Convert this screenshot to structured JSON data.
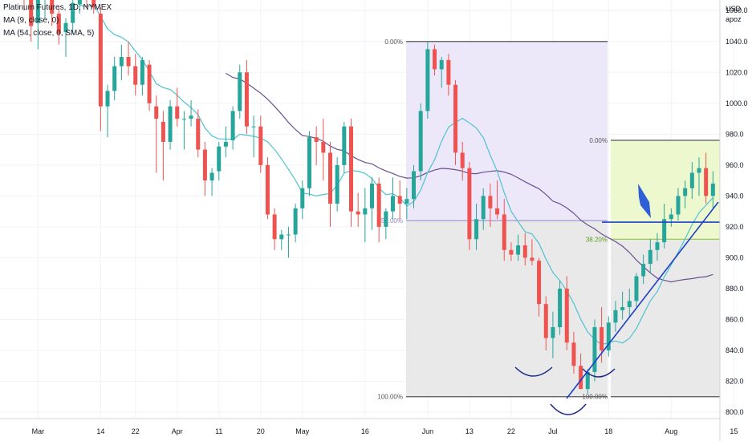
{
  "legend": {
    "line1": "Platinum Futures, 1D, NYMEX",
    "line2": "MA (9, close, 0)",
    "line3": "MA (54, close, 0, SMA, 5)"
  },
  "price_axis": {
    "currency": "USD",
    "sub": "apoz"
  },
  "colors": {
    "up": "#26a69a",
    "down": "#ef5350",
    "ma_fast": "#4fc3d0",
    "ma_slow": "#6b4f8f",
    "fib1_bg_top": "#ece8fa",
    "fib1_bg_bottom": "#e9e9e9",
    "fib2_bg": "#eef8cf",
    "trend": "#1e3fc8",
    "fib_level_line": "#5c5c8c"
  },
  "chart_data": {
    "type": "candlestick",
    "title": "Platinum Futures, 1D, NYMEX",
    "xlabel": "",
    "ylabel": "USD",
    "ylim": [
      795,
      1070
    ],
    "y_ticks": [
      800,
      820,
      840,
      860,
      880,
      900,
      920,
      940,
      960,
      980,
      1000,
      1020,
      1040,
      1060
    ],
    "x_ticks": [
      {
        "label": "Mar",
        "index": 2
      },
      {
        "label": "14",
        "index": 11
      },
      {
        "label": "22",
        "index": 16
      },
      {
        "label": "Apr",
        "index": 22
      },
      {
        "label": "11",
        "index": 28
      },
      {
        "label": "20",
        "index": 34
      },
      {
        "label": "May",
        "index": 40
      },
      {
        "label": "16",
        "index": 49
      },
      {
        "label": "Jun",
        "index": 58
      },
      {
        "label": "13",
        "index": 64
      },
      {
        "label": "22",
        "index": 70
      },
      {
        "label": "Jul",
        "index": 76
      },
      {
        "label": "18",
        "index": 84
      },
      {
        "label": "Aug",
        "index": 93
      },
      {
        "label": "15",
        "index": 102
      }
    ],
    "candles": [
      [
        1082,
        1090,
        1060,
        1075
      ],
      [
        1075,
        1085,
        1040,
        1050
      ],
      [
        1052,
        1075,
        1035,
        1068
      ],
      [
        1068,
        1085,
        1055,
        1080
      ],
      [
        1080,
        1088,
        1050,
        1058
      ],
      [
        1058,
        1062,
        1038,
        1045
      ],
      [
        1046,
        1055,
        1030,
        1052
      ],
      [
        1052,
        1072,
        1045,
        1065
      ],
      [
        1064,
        1082,
        1058,
        1078
      ],
      [
        1076,
        1090,
        1062,
        1068
      ],
      [
        1070,
        1080,
        1058,
        1062
      ],
      [
        1058,
        1062,
        982,
        998
      ],
      [
        998,
        1012,
        978,
        1008
      ],
      [
        1008,
        1030,
        1002,
        1024
      ],
      [
        1024,
        1038,
        1015,
        1030
      ],
      [
        1030,
        1040,
        1018,
        1024
      ],
      [
        1024,
        1032,
        1005,
        1012
      ],
      [
        1012,
        1030,
        1005,
        1028
      ],
      [
        1025,
        1028,
        995,
        1000
      ],
      [
        998,
        1005,
        955,
        990
      ],
      [
        988,
        995,
        950,
        975
      ],
      [
        975,
        1002,
        970,
        998
      ],
      [
        998,
        1010,
        985,
        990
      ],
      [
        990,
        995,
        970,
        990
      ],
      [
        990,
        1002,
        985,
        992
      ],
      [
        990,
        996,
        965,
        970
      ],
      [
        970,
        975,
        940,
        950
      ],
      [
        950,
        958,
        940,
        955
      ],
      [
        956,
        975,
        950,
        972
      ],
      [
        972,
        985,
        965,
        975
      ],
      [
        976,
        998,
        970,
        995
      ],
      [
        995,
        1025,
        990,
        1020
      ],
      [
        1020,
        1028,
        980,
        985
      ],
      [
        985,
        992,
        965,
        985
      ],
      [
        985,
        992,
        955,
        960
      ],
      [
        960,
        965,
        925,
        928
      ],
      [
        928,
        932,
        905,
        912
      ],
      [
        912,
        918,
        905,
        915
      ],
      [
        915,
        920,
        900,
        915
      ],
      [
        915,
        935,
        910,
        932
      ],
      [
        932,
        950,
        925,
        945
      ],
      [
        945,
        982,
        940,
        978
      ],
      [
        978,
        985,
        960,
        975
      ],
      [
        975,
        990,
        950,
        968
      ],
      [
        968,
        975,
        920,
        935
      ],
      [
        935,
        965,
        930,
        960
      ],
      [
        960,
        988,
        955,
        985
      ],
      [
        985,
        990,
        920,
        930
      ],
      [
        930,
        942,
        920,
        928
      ],
      [
        928,
        945,
        910,
        932
      ],
      [
        932,
        952,
        918,
        948
      ],
      [
        948,
        952,
        910,
        920
      ],
      [
        920,
        932,
        912,
        930
      ],
      [
        930,
        952,
        925,
        940
      ],
      [
        940,
        950,
        925,
        935
      ],
      [
        935,
        945,
        925,
        938
      ],
      [
        938,
        960,
        932,
        956
      ],
      [
        956,
        1000,
        950,
        995
      ],
      [
        995,
        1040,
        990,
        1035
      ],
      [
        1035,
        1038,
        1018,
        1022
      ],
      [
        1022,
        1030,
        1010,
        1028
      ],
      [
        1028,
        1032,
        1005,
        1012
      ],
      [
        1012,
        1015,
        960,
        968
      ],
      [
        968,
        975,
        950,
        958
      ],
      [
        958,
        962,
        905,
        912
      ],
      [
        912,
        935,
        905,
        925
      ],
      [
        925,
        945,
        918,
        940
      ],
      [
        940,
        948,
        920,
        932
      ],
      [
        932,
        950,
        925,
        928
      ],
      [
        928,
        938,
        898,
        905
      ],
      [
        905,
        910,
        898,
        902
      ],
      [
        902,
        915,
        898,
        908
      ],
      [
        908,
        916,
        895,
        900
      ],
      [
        900,
        912,
        895,
        898
      ],
      [
        898,
        900,
        862,
        870
      ],
      [
        870,
        875,
        840,
        848
      ],
      [
        848,
        865,
        835,
        855
      ],
      [
        855,
        885,
        850,
        880
      ],
      [
        880,
        888,
        840,
        845
      ],
      [
        845,
        852,
        825,
        830
      ],
      [
        830,
        838,
        815,
        815
      ],
      [
        815,
        828,
        812,
        826
      ],
      [
        826,
        860,
        820,
        855
      ],
      [
        855,
        868,
        832,
        840
      ],
      [
        840,
        862,
        836,
        858
      ],
      [
        858,
        872,
        852,
        866
      ],
      [
        866,
        878,
        860,
        868
      ],
      [
        868,
        880,
        862,
        872
      ],
      [
        872,
        890,
        868,
        888
      ],
      [
        888,
        902,
        883,
        896
      ],
      [
        896,
        912,
        890,
        905
      ],
      [
        905,
        916,
        898,
        910
      ],
      [
        910,
        935,
        906,
        925
      ],
      [
        925,
        932,
        920,
        928
      ],
      [
        928,
        945,
        924,
        940
      ],
      [
        940,
        950,
        932,
        945
      ],
      [
        945,
        962,
        938,
        955
      ],
      [
        955,
        965,
        940,
        958
      ],
      [
        958,
        968,
        935,
        940
      ],
      [
        940,
        956,
        932,
        948
      ]
    ],
    "series": [
      {
        "name": "MA (9, close, 0)",
        "values": []
      },
      {
        "name": "MA (54, close, 0, SMA, 5)",
        "values": []
      }
    ],
    "fib_retracements": [
      {
        "levels": [
          {
            "label": "0.00%",
            "price": 1040
          },
          {
            "label": "50.00%",
            "price": 924
          },
          {
            "label": "100.00%",
            "price": 810
          }
        ]
      },
      {
        "levels": [
          {
            "label": "0.00%",
            "price": 976
          },
          {
            "label": "38.20%",
            "price": 912
          },
          {
            "label": "100.00%",
            "price": 810
          }
        ]
      }
    ],
    "grid": true,
    "legend_position": "top-left"
  }
}
